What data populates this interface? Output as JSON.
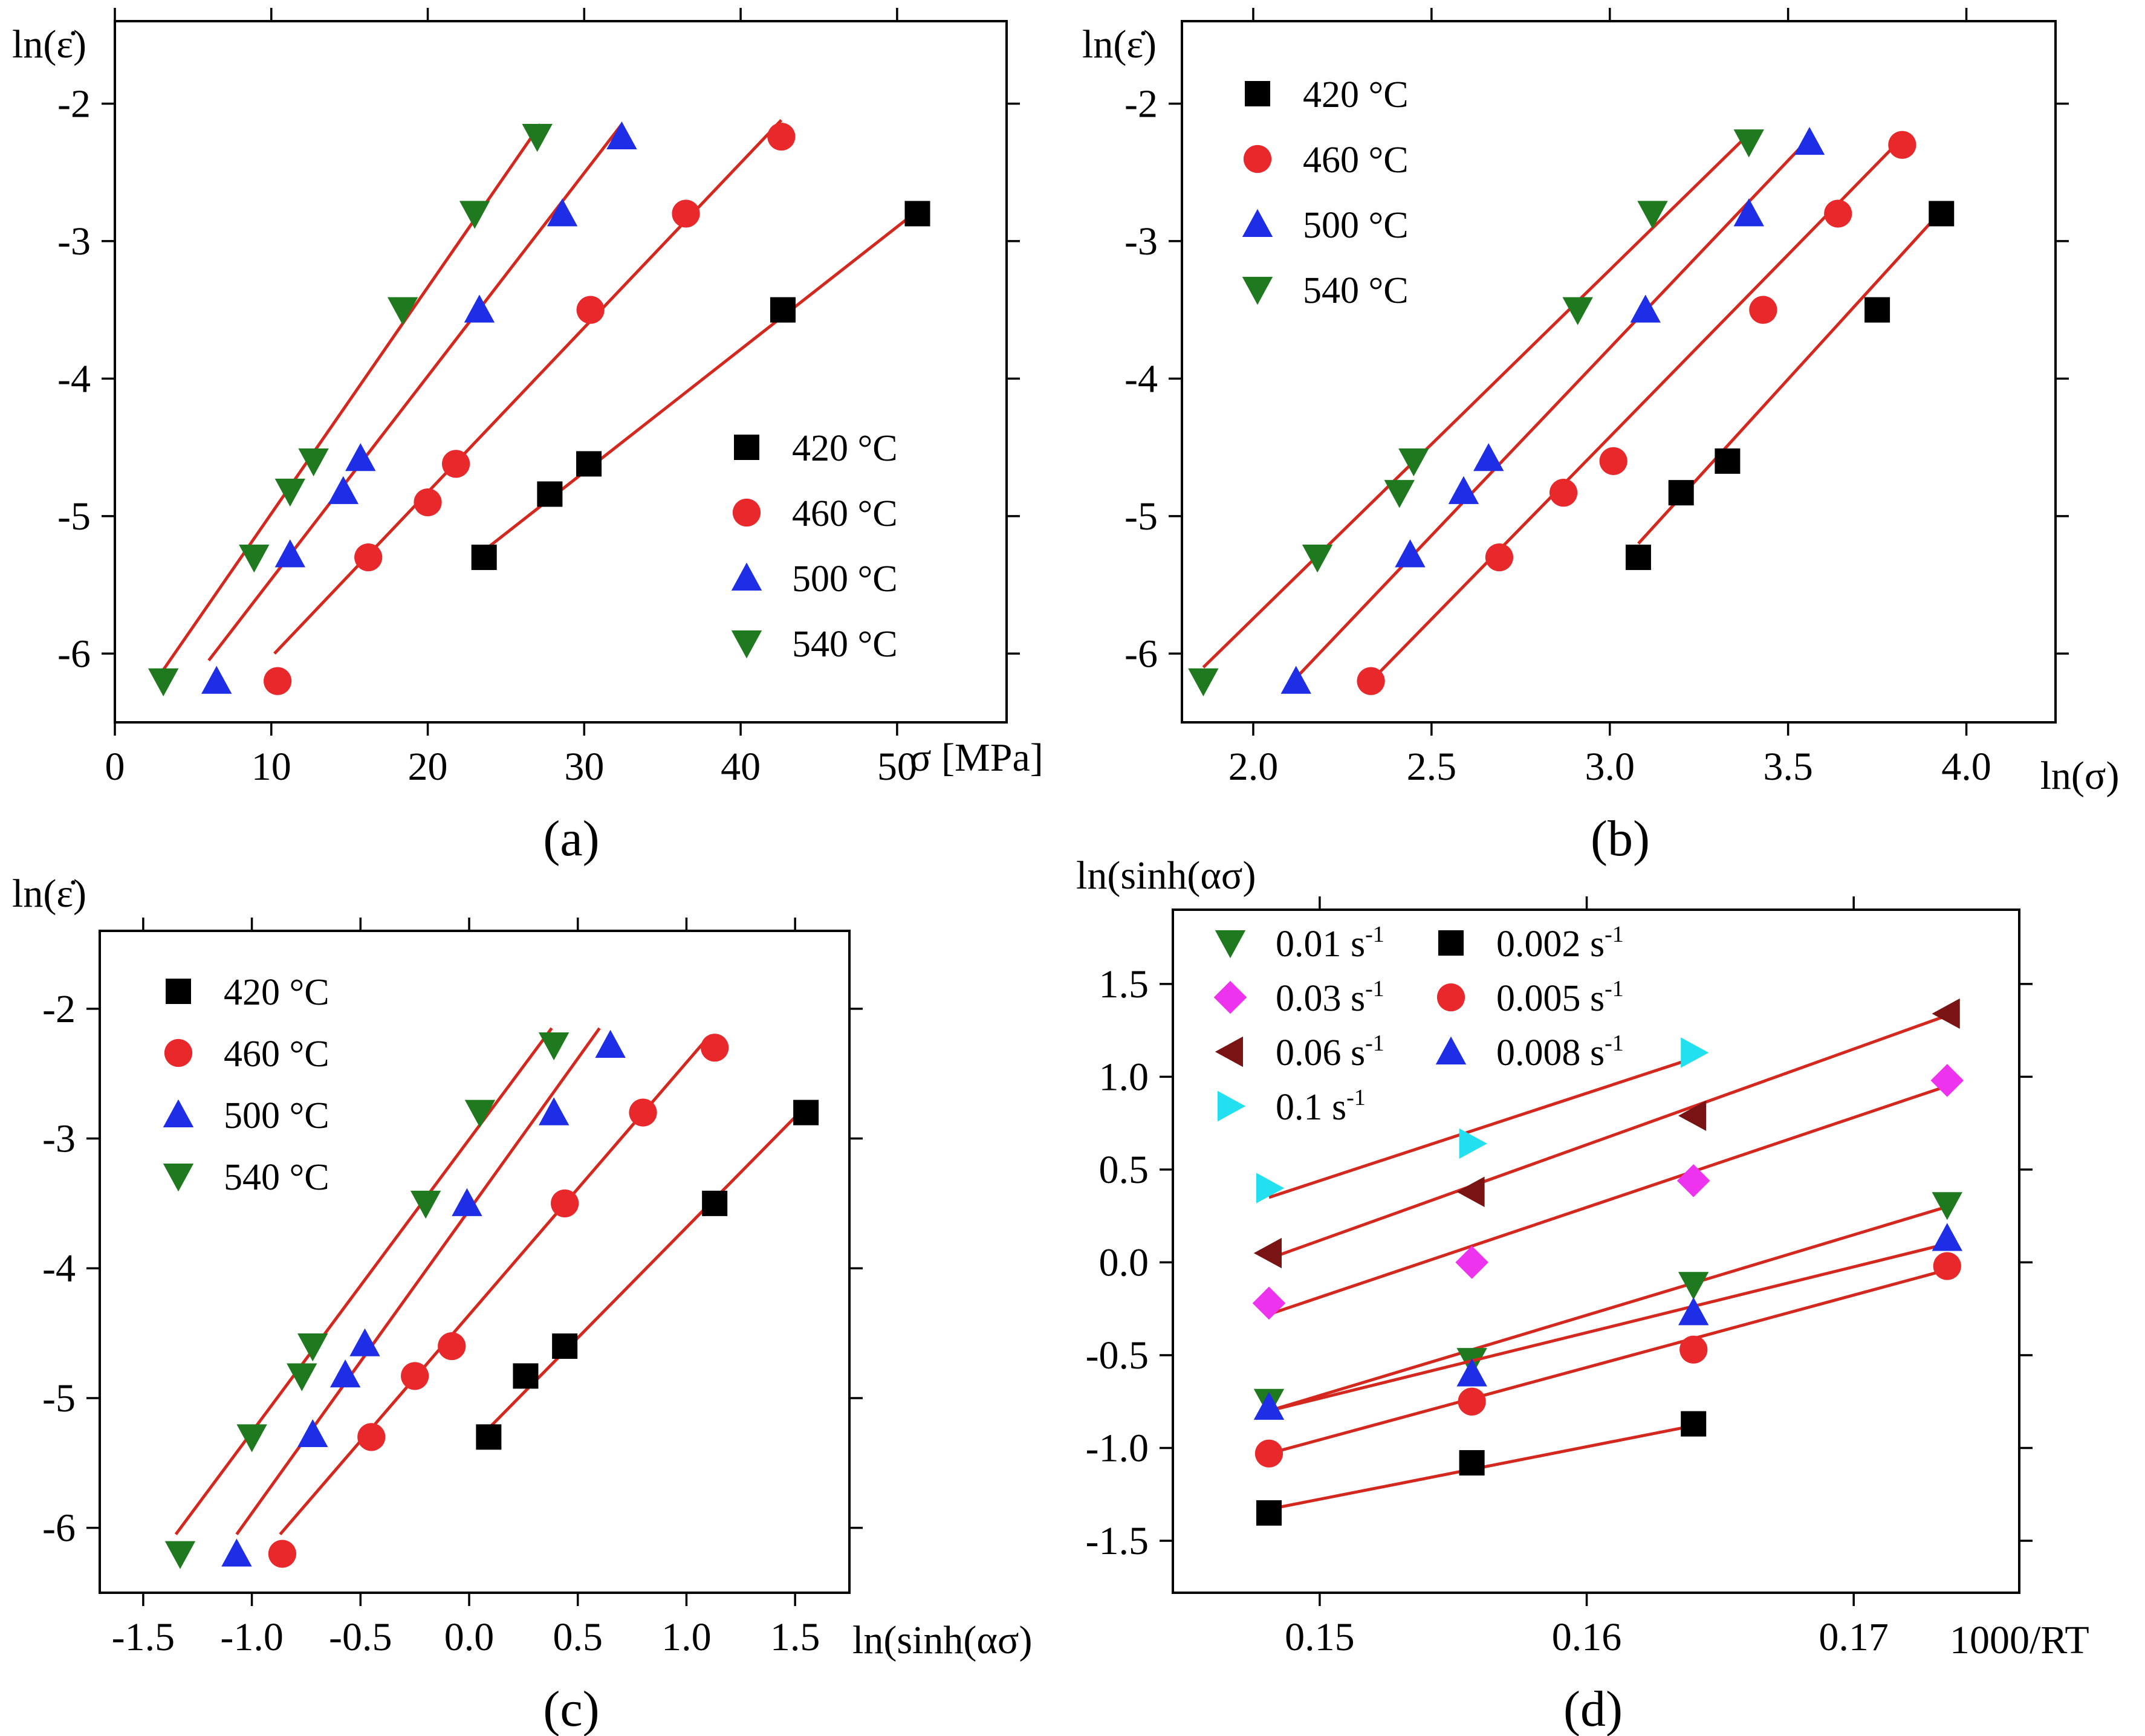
{
  "colors": {
    "fit_line": "#d4281e",
    "black": "#000000",
    "red": "#e8282a",
    "blue": "#1e2ee6",
    "green": "#1f7a1f",
    "magenta": "#ee33ee",
    "darkred": "#7a1414",
    "cyan": "#22e0f0"
  },
  "chart_data": [
    {
      "panel": "(a)",
      "type": "scatter",
      "ylabel": "ln(ε̇)",
      "xlabel": "σ [MPa]",
      "xlim": [
        0,
        57
      ],
      "ylim": [
        -6.5,
        -1.4
      ],
      "xticks": [
        0,
        10,
        20,
        30,
        40,
        50
      ],
      "xtick_labels": [
        "0",
        "10",
        "20",
        "30",
        "40",
        "50"
      ],
      "yticks": [
        -6,
        -5,
        -4,
        -3,
        -2
      ],
      "ytick_labels": [
        "-6",
        "-5",
        "-4",
        "-3",
        "-2"
      ],
      "legend": "lower-right",
      "series": [
        {
          "name": "420 °C",
          "marker": "square",
          "color": "black",
          "x": [
            23.6,
            27.8,
            30.3,
            42.7,
            51.3
          ],
          "y": [
            -5.3,
            -4.84,
            -4.62,
            -3.5,
            -2.8
          ],
          "fit": [
            [
              23.6,
              -5.25
            ],
            [
              51.3,
              -2.78
            ]
          ]
        },
        {
          "name": "460 °C",
          "marker": "circle",
          "color": "red",
          "x": [
            10.4,
            16.2,
            20.0,
            21.8,
            30.4,
            36.5,
            42.6
          ],
          "y": [
            -6.2,
            -5.3,
            -4.9,
            -4.62,
            -3.5,
            -2.8,
            -2.24
          ],
          "fit": [
            [
              10.2,
              -6.0
            ],
            [
              42.6,
              -2.12
            ]
          ]
        },
        {
          "name": "500 °C",
          "marker": "triangle-up",
          "color": "blue",
          "x": [
            6.5,
            11.2,
            14.6,
            15.7,
            23.3,
            28.6,
            32.4
          ],
          "y": [
            -6.2,
            -5.28,
            -4.82,
            -4.58,
            -3.5,
            -2.8,
            -2.24
          ],
          "fit": [
            [
              6.0,
              -6.05
            ],
            [
              32.4,
              -2.15
            ]
          ]
        },
        {
          "name": "540 °C",
          "marker": "triangle-down",
          "color": "green",
          "x": [
            3.1,
            8.9,
            11.2,
            12.7,
            18.4,
            23.0,
            27.0
          ],
          "y": [
            -6.2,
            -5.3,
            -4.82,
            -4.6,
            -3.5,
            -2.8,
            -2.24
          ],
          "fit": [
            [
              2.6,
              -6.2
            ],
            [
              27.2,
              -2.15
            ]
          ]
        }
      ]
    },
    {
      "panel": "(b)",
      "type": "scatter",
      "ylabel": "ln(ε̇)",
      "xlabel": "ln(σ)",
      "xlim": [
        1.8,
        4.25
      ],
      "ylim": [
        -6.5,
        -1.4
      ],
      "xticks": [
        2.0,
        2.5,
        3.0,
        3.5,
        4.0
      ],
      "xtick_labels": [
        "2.0",
        "2.5",
        "3.0",
        "3.5",
        "4.0"
      ],
      "yticks": [
        -6,
        -5,
        -4,
        -3,
        -2
      ],
      "ytick_labels": [
        "-6",
        "-5",
        "-4",
        "-3",
        "-2"
      ],
      "legend": "top-left",
      "series": [
        {
          "name": "420 °C",
          "marker": "square",
          "color": "black",
          "x": [
            3.08,
            3.2,
            3.33,
            3.75,
            3.93
          ],
          "y": [
            -5.3,
            -4.83,
            -4.6,
            -3.5,
            -2.8
          ],
          "fit": [
            [
              3.08,
              -5.2
            ],
            [
              3.93,
              -2.78
            ]
          ]
        },
        {
          "name": "460 °C",
          "marker": "circle",
          "color": "red",
          "x": [
            2.33,
            2.69,
            2.87,
            3.01,
            3.43,
            3.64,
            3.82
          ],
          "y": [
            -6.2,
            -5.3,
            -4.83,
            -4.6,
            -3.5,
            -2.8,
            -2.3
          ],
          "fit": [
            [
              2.33,
              -6.2
            ],
            [
              3.82,
              -2.25
            ]
          ]
        },
        {
          "name": "500 °C",
          "marker": "triangle-up",
          "color": "blue",
          "x": [
            2.12,
            2.44,
            2.59,
            2.66,
            3.1,
            3.39,
            3.56
          ],
          "y": [
            -6.2,
            -5.28,
            -4.82,
            -4.58,
            -3.5,
            -2.8,
            -2.28
          ],
          "fit": [
            [
              2.13,
              -6.15
            ],
            [
              3.56,
              -2.25
            ]
          ]
        },
        {
          "name": "540 °C",
          "marker": "triangle-down",
          "color": "green",
          "x": [
            1.86,
            2.18,
            2.41,
            2.45,
            2.91,
            3.12,
            3.39
          ],
          "y": [
            -6.2,
            -5.3,
            -4.83,
            -4.6,
            -3.5,
            -2.8,
            -2.28
          ],
          "fit": [
            [
              1.86,
              -6.1
            ],
            [
              3.39,
              -2.22
            ]
          ]
        }
      ]
    },
    {
      "panel": "(c)",
      "type": "scatter",
      "ylabel": "ln(ε̇)",
      "xlabel": "ln(sinh(ασ)",
      "xlim": [
        -1.7,
        1.75
      ],
      "ylim": [
        -6.5,
        -1.4
      ],
      "xticks": [
        -1.5,
        -1.0,
        -0.5,
        0.0,
        0.5,
        1.0,
        1.5
      ],
      "xtick_labels": [
        "-1.5",
        "-1.0",
        "-0.5",
        "0.0",
        "0.5",
        "1.0",
        "1.5"
      ],
      "yticks": [
        -6,
        -5,
        -4,
        -3,
        -2
      ],
      "ytick_labels": [
        "-6",
        "-5",
        "-4",
        "-3",
        "-2"
      ],
      "legend": "top-left",
      "series": [
        {
          "name": "420 °C",
          "marker": "square",
          "color": "black",
          "x": [
            0.09,
            0.26,
            0.44,
            1.13,
            1.55
          ],
          "y": [
            -5.3,
            -4.83,
            -4.6,
            -3.5,
            -2.8
          ],
          "fit": [
            [
              0.08,
              -5.25
            ],
            [
              1.55,
              -2.75
            ]
          ]
        },
        {
          "name": "460 °C",
          "marker": "circle",
          "color": "red",
          "x": [
            -0.86,
            -0.45,
            -0.25,
            -0.08,
            0.44,
            0.8,
            1.13
          ],
          "y": [
            -6.2,
            -5.3,
            -4.83,
            -4.6,
            -3.5,
            -2.8,
            -2.3
          ],
          "fit": [
            [
              -0.87,
              -6.05
            ],
            [
              1.1,
              -2.22
            ]
          ]
        },
        {
          "name": "500 °C",
          "marker": "triangle-up",
          "color": "blue",
          "x": [
            -1.07,
            -0.72,
            -0.57,
            -0.48,
            -0.01,
            0.39,
            0.65
          ],
          "y": [
            -6.2,
            -5.28,
            -4.82,
            -4.58,
            -3.5,
            -2.8,
            -2.28
          ],
          "fit": [
            [
              -1.07,
              -6.05
            ],
            [
              0.6,
              -2.15
            ]
          ]
        },
        {
          "name": "540 °C",
          "marker": "triangle-down",
          "color": "green",
          "x": [
            -1.33,
            -1.0,
            -0.77,
            -0.72,
            -0.2,
            0.05,
            0.39
          ],
          "y": [
            -6.2,
            -5.3,
            -4.83,
            -4.6,
            -3.5,
            -2.8,
            -2.28
          ],
          "fit": [
            [
              -1.35,
              -6.05
            ],
            [
              0.38,
              -2.15
            ]
          ]
        }
      ]
    },
    {
      "panel": "(d)",
      "type": "scatter",
      "ylabel": "ln(sinh(ασ)",
      "xlabel": "1000/RT",
      "xlim": [
        0.1445,
        0.1762
      ],
      "ylim": [
        -1.78,
        1.9
      ],
      "xticks": [
        0.15,
        0.16,
        0.17
      ],
      "xtick_labels": [
        "0.15",
        "0.16",
        "0.17"
      ],
      "yticks": [
        -1.5,
        -1.0,
        -0.5,
        0.0,
        0.5,
        1.0,
        1.5
      ],
      "ytick_labels": [
        "-1.5",
        "-1.0",
        "-0.5",
        "0.0",
        "0.5",
        "1.0",
        "1.5"
      ],
      "legend": "top-left (two columns)",
      "series": [
        {
          "name": "0.01 s",
          "sup": "-1",
          "marker": "triangle-down",
          "color": "green",
          "x": [
            0.1481,
            0.1557,
            0.164,
            0.1735
          ],
          "y": [
            -0.75,
            -0.53,
            -0.12,
            0.31
          ],
          "fit": [
            [
              0.1481,
              -0.8
            ],
            [
              0.1735,
              0.3
            ]
          ]
        },
        {
          "name": "0.03 s",
          "sup": "-1",
          "marker": "diamond",
          "color": "magenta",
          "x": [
            0.1481,
            0.1557,
            0.164,
            0.1735
          ],
          "y": [
            -0.22,
            0.0,
            0.44,
            0.98
          ],
          "fit": [
            [
              0.1481,
              -0.28
            ],
            [
              0.1735,
              0.95
            ]
          ]
        },
        {
          "name": "0.06 s",
          "sup": "-1",
          "marker": "triangle-left",
          "color": "darkred",
          "x": [
            0.1481,
            0.1557,
            0.164,
            0.1735
          ],
          "y": [
            0.05,
            0.38,
            0.79,
            1.34
          ],
          "fit": [
            [
              0.1481,
              0.02
            ],
            [
              0.1735,
              1.33
            ]
          ]
        },
        {
          "name": "0.1 s",
          "sup": "-1",
          "marker": "triangle-right",
          "color": "cyan",
          "x": [
            0.1481,
            0.1557,
            0.164
          ],
          "y": [
            0.4,
            0.64,
            1.13
          ],
          "fit": [
            [
              0.1481,
              0.35
            ],
            [
              0.164,
              1.1
            ]
          ]
        },
        {
          "name": "0.002 s",
          "sup": "-1",
          "marker": "square",
          "color": "black",
          "x": [
            0.1481,
            0.1557,
            0.164
          ],
          "y": [
            -1.35,
            -1.08,
            -0.87
          ],
          "fit": [
            [
              0.1481,
              -1.33
            ],
            [
              0.164,
              -0.88
            ]
          ]
        },
        {
          "name": "0.005 s",
          "sup": "-1",
          "marker": "circle",
          "color": "red",
          "x": [
            0.1481,
            0.1557,
            0.164,
            0.1735
          ],
          "y": [
            -1.03,
            -0.75,
            -0.47,
            -0.02
          ],
          "fit": [
            [
              0.1481,
              -1.03
            ],
            [
              0.1735,
              -0.04
            ]
          ]
        },
        {
          "name": "0.008 s",
          "sup": "-1",
          "marker": "triangle-up",
          "color": "blue",
          "x": [
            0.1481,
            0.1557,
            0.164,
            0.1735
          ],
          "y": [
            -0.78,
            -0.6,
            -0.27,
            0.13
          ],
          "fit": [
            [
              0.1481,
              -0.8
            ],
            [
              0.1735,
              0.1
            ]
          ]
        }
      ]
    }
  ]
}
